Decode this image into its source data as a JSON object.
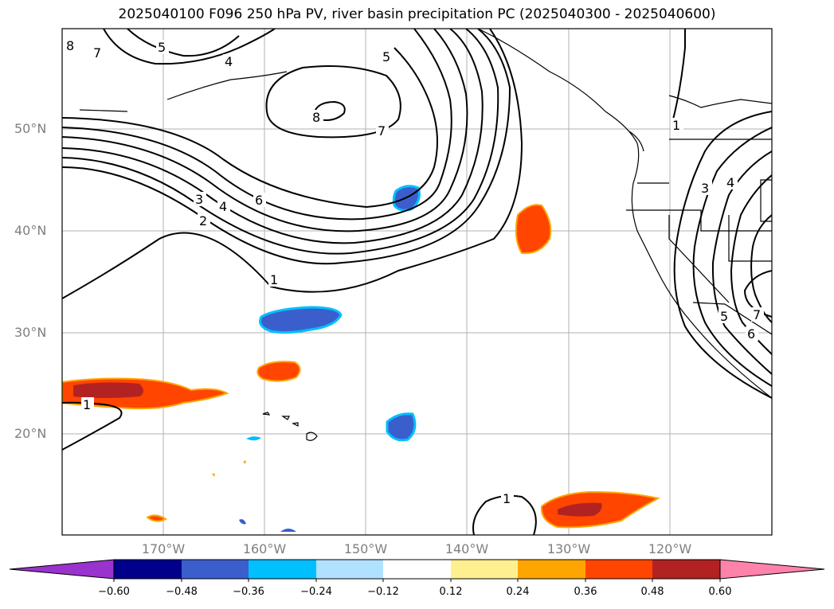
{
  "title": "2025040100 F096 250 hPa PV, river basin precipitation PC (2025040300 - 2025040600)",
  "map": {
    "lat_labels": [
      "50°N",
      "40°N",
      "30°N",
      "20°N"
    ],
    "lon_labels": [
      "170°W",
      "160°W",
      "150°W",
      "140°W",
      "130°W",
      "120°W"
    ],
    "contour_labels": [
      "8",
      "7",
      "5",
      "4",
      "5",
      "8",
      "7",
      "6",
      "4",
      "3",
      "2",
      "1",
      "1",
      "1",
      "1",
      "3",
      "4",
      "5",
      "6",
      "7"
    ],
    "pv_contour_color": "#000000",
    "grid_color": "#b0b0b0"
  },
  "colorbar": {
    "ticks": [
      "−0.60",
      "−0.48",
      "−0.36",
      "−0.24",
      "−0.12",
      "0.12",
      "0.24",
      "0.36",
      "0.48",
      "0.60"
    ],
    "colors": [
      "#9a32cd",
      "#00008b",
      "#3a5fcd",
      "#00bfff",
      "#b0e2ff",
      "#ffffff",
      "#fff08f",
      "#ffa500",
      "#ff4500",
      "#b22222",
      "#ff82ab"
    ]
  }
}
